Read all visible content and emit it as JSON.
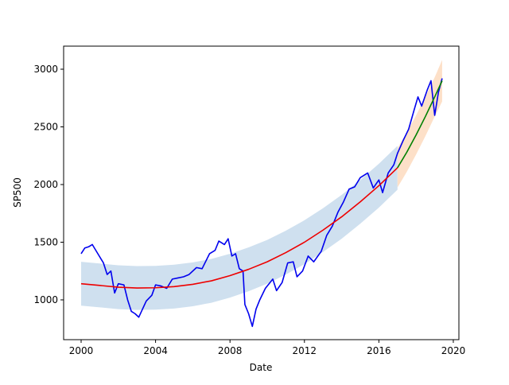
{
  "chart_data": {
    "type": "line",
    "xlabel": "Date",
    "ylabel": "SP500",
    "xlim": [
      1999.06,
      2020.3
    ],
    "ylim": [
      655,
      3200
    ],
    "xticks": [
      2000,
      2004,
      2008,
      2012,
      2016,
      2020
    ],
    "yticks": [
      1000,
      1500,
      2000,
      2500,
      3000
    ],
    "bands": [
      {
        "color": "#cfe0ef",
        "x": [
          2000,
          2001,
          2002,
          2003,
          2004,
          2005,
          2006,
          2007,
          2008,
          2009,
          2010,
          2011,
          2012,
          2013,
          2014,
          2015,
          2016,
          2017
        ],
        "lower": [
          950,
          935,
          920,
          913,
          915,
          925,
          945,
          975,
          1020,
          1075,
          1140,
          1220,
          1310,
          1415,
          1530,
          1660,
          1800,
          1955
        ],
        "upper": [
          1330,
          1315,
          1300,
          1293,
          1295,
          1305,
          1325,
          1355,
          1400,
          1455,
          1520,
          1600,
          1690,
          1795,
          1910,
          2040,
          2180,
          2335
        ]
      },
      {
        "color": "#fde0c8",
        "x": [
          2017,
          2017.5,
          2018,
          2018.5,
          2019,
          2019.4
        ],
        "lower": [
          1975,
          2110,
          2260,
          2420,
          2590,
          2720
        ],
        "upper": [
          2315,
          2450,
          2600,
          2760,
          2930,
          3080
        ]
      }
    ],
    "series": [
      {
        "color": "#0000ee",
        "x": [
          2000.0,
          2000.2,
          2000.4,
          2000.6,
          2000.9,
          2001.2,
          2001.4,
          2001.6,
          2001.8,
          2002.0,
          2002.3,
          2002.5,
          2002.7,
          2002.9,
          2003.1,
          2003.3,
          2003.5,
          2003.8,
          2004.0,
          2004.3,
          2004.6,
          2004.9,
          2005.2,
          2005.5,
          2005.8,
          2006.2,
          2006.5,
          2006.9,
          2007.2,
          2007.4,
          2007.7,
          2007.9,
          2008.1,
          2008.3,
          2008.5,
          2008.7,
          2008.8,
          2009.0,
          2009.2,
          2009.4,
          2009.6,
          2009.9,
          2010.3,
          2010.5,
          2010.8,
          2011.1,
          2011.4,
          2011.6,
          2011.9,
          2012.2,
          2012.5,
          2012.9,
          2013.2,
          2013.5,
          2013.8,
          2014.1,
          2014.4,
          2014.7,
          2015.0,
          2015.4,
          2015.7,
          2016.0,
          2016.2,
          2016.5,
          2016.8,
          2017.0,
          2017.3,
          2017.6,
          2017.9,
          2018.1,
          2018.3,
          2018.6,
          2018.8,
          2019.0,
          2019.2,
          2019.4
        ],
        "values": [
          1400,
          1450,
          1460,
          1480,
          1400,
          1320,
          1220,
          1250,
          1060,
          1140,
          1130,
          1000,
          900,
          880,
          850,
          920,
          990,
          1040,
          1130,
          1120,
          1100,
          1180,
          1190,
          1200,
          1220,
          1280,
          1270,
          1400,
          1430,
          1510,
          1480,
          1530,
          1380,
          1400,
          1270,
          1250,
          960,
          880,
          770,
          920,
          1000,
          1100,
          1180,
          1080,
          1150,
          1320,
          1330,
          1200,
          1250,
          1380,
          1330,
          1420,
          1560,
          1640,
          1760,
          1850,
          1960,
          1980,
          2060,
          2100,
          1970,
          2040,
          1930,
          2100,
          2170,
          2270,
          2380,
          2480,
          2650,
          2760,
          2680,
          2820,
          2900,
          2600,
          2800,
          2920
        ]
      },
      {
        "color": "#ee0000",
        "x": [
          2000,
          2001,
          2002,
          2003,
          2004,
          2005,
          2006,
          2007,
          2008,
          2009,
          2010,
          2011,
          2012,
          2013,
          2014,
          2015,
          2016,
          2017
        ],
        "values": [
          1140,
          1125,
          1110,
          1103,
          1105,
          1115,
          1135,
          1165,
          1210,
          1265,
          1330,
          1410,
          1500,
          1605,
          1720,
          1850,
          1990,
          2145
        ]
      },
      {
        "color": "#008000",
        "x": [
          2017,
          2017.5,
          2018,
          2018.5,
          2019,
          2019.4
        ],
        "values": [
          2145,
          2280,
          2430,
          2590,
          2760,
          2900
        ]
      }
    ]
  }
}
